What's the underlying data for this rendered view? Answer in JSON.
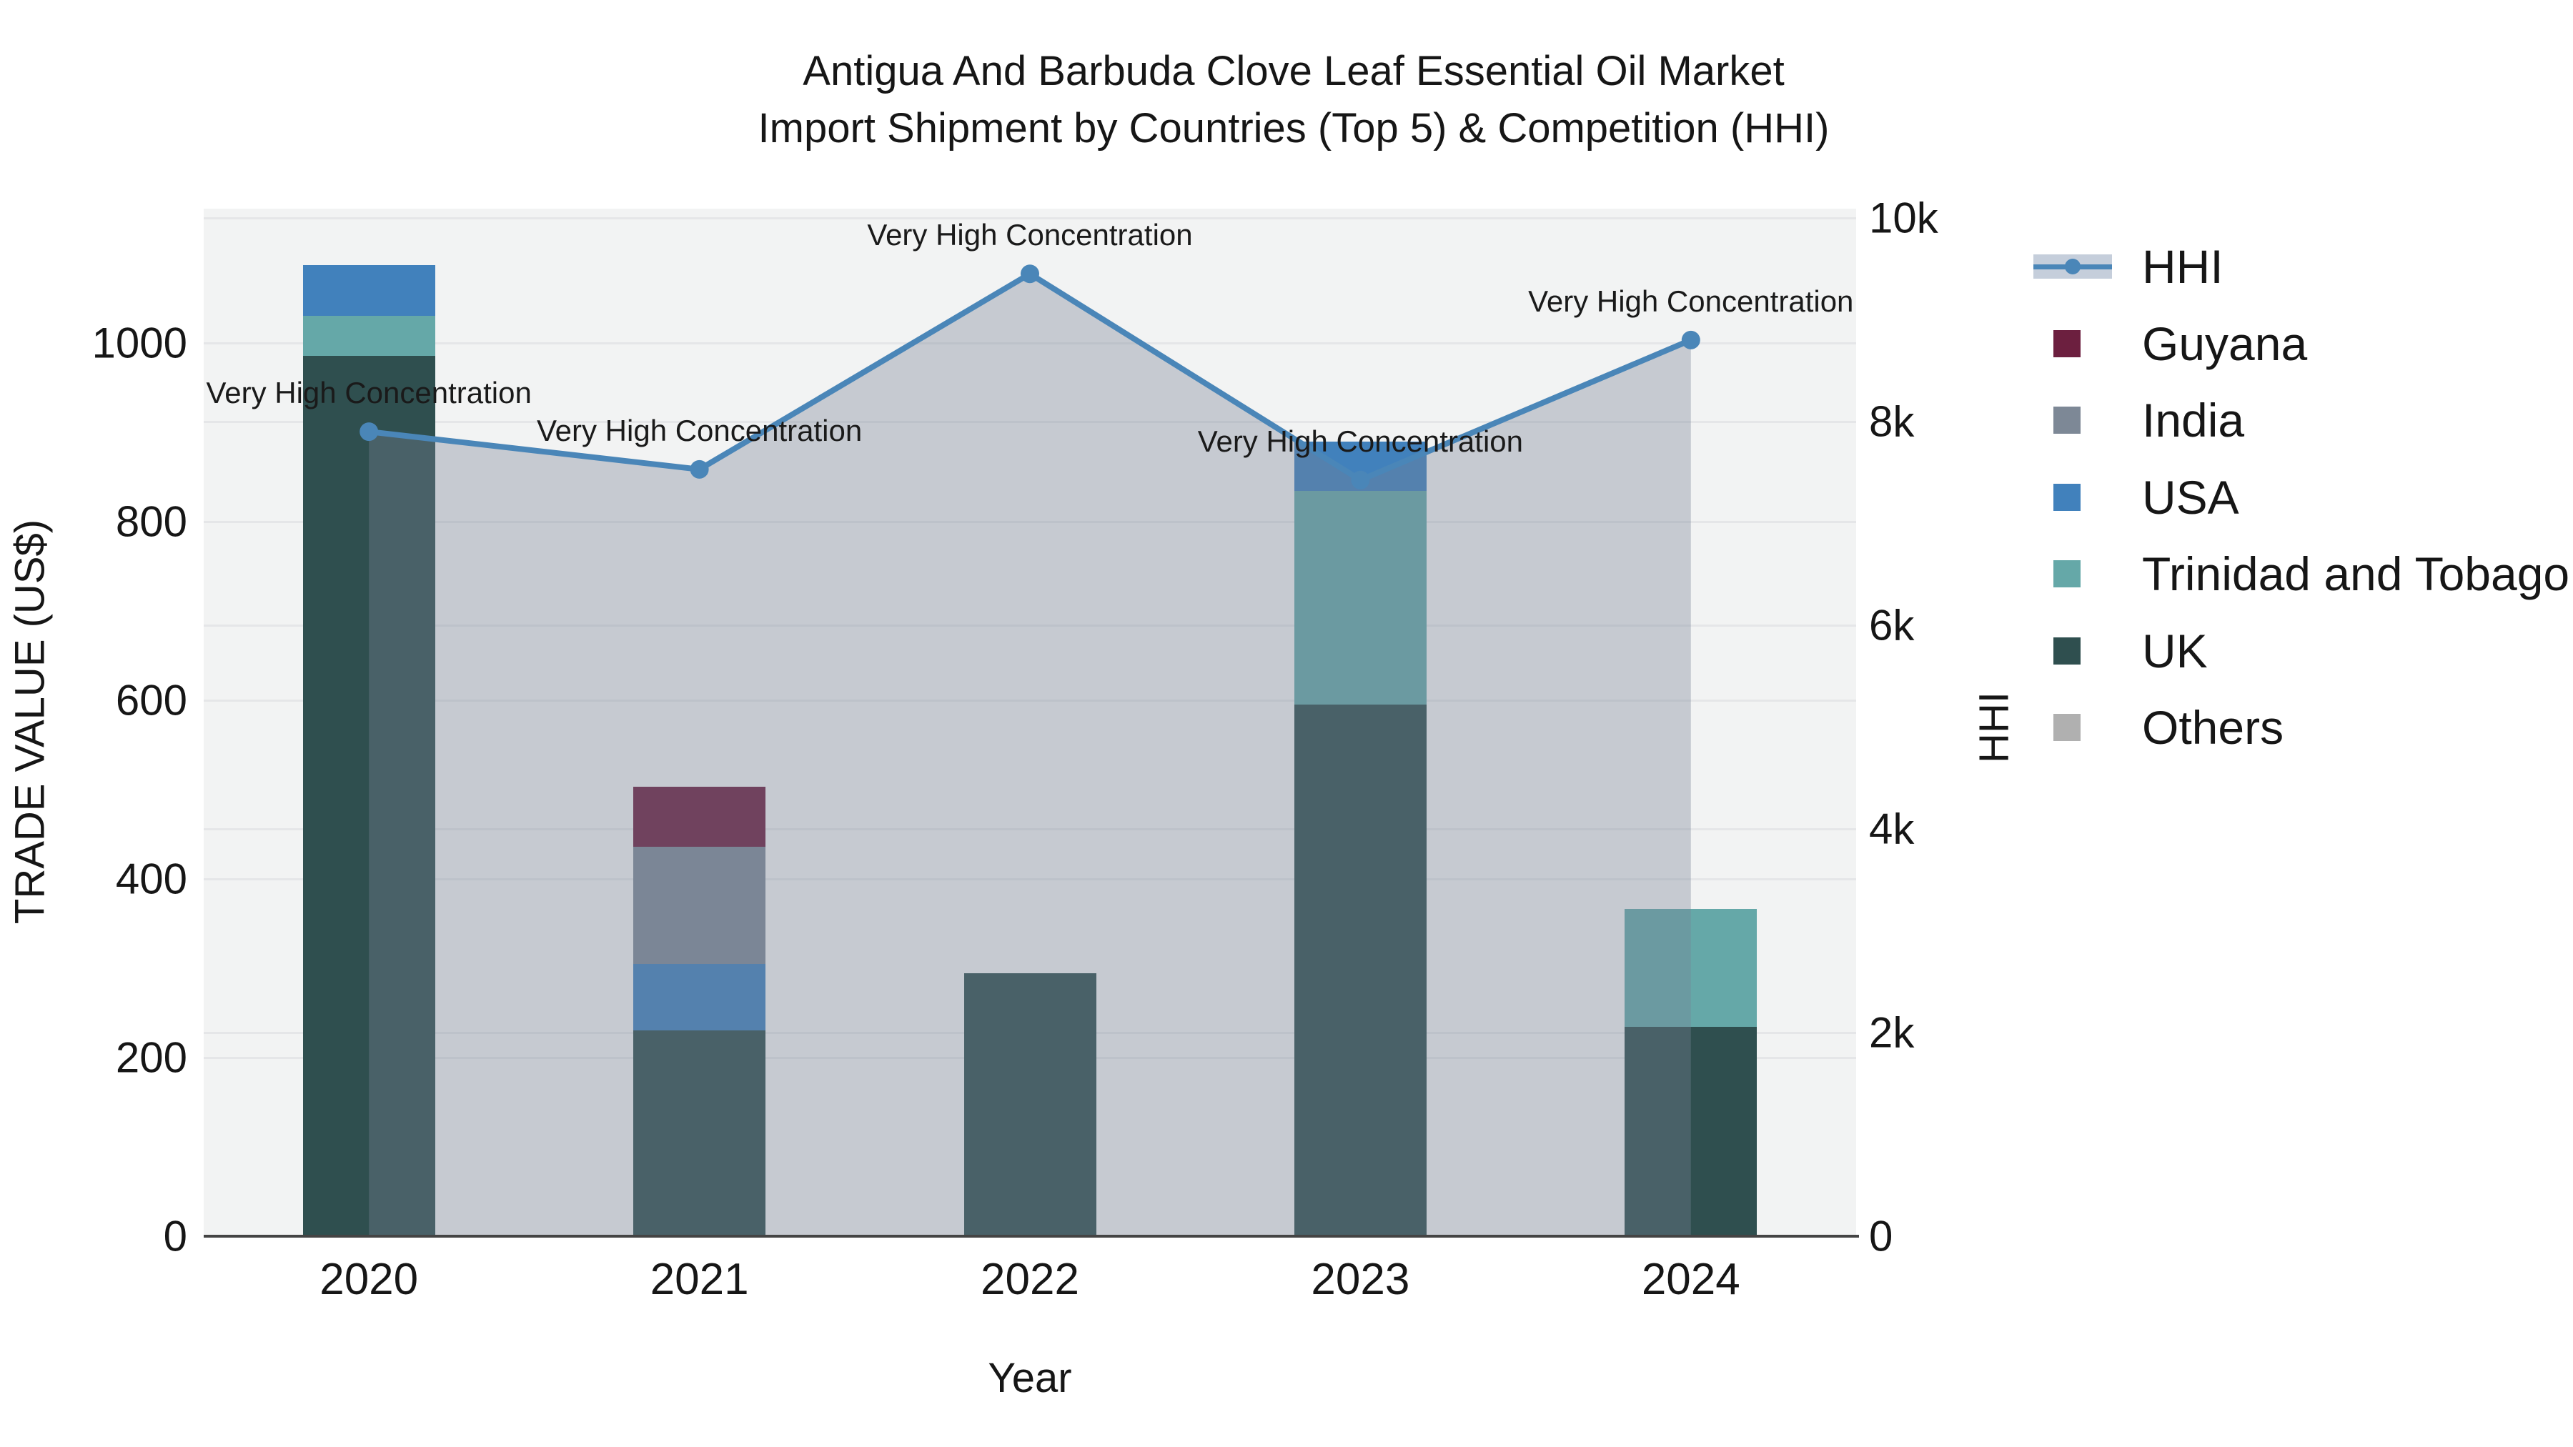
{
  "title": {
    "line1": "Antigua And Barbuda Clove Leaf Essential Oil Market",
    "line2": "Import Shipment by Countries (Top 5) & Competition (HHI)"
  },
  "axes": {
    "x_title": "Year",
    "y_left_title": "TRADE VALUE (US$)",
    "y_right_title": "HHI",
    "x_ticks": [
      "2020",
      "2021",
      "2022",
      "2023",
      "2024"
    ],
    "y_left_ticks": [
      "0",
      "200",
      "400",
      "600",
      "800",
      "1000"
    ],
    "y_right_ticks": [
      "0",
      "2k",
      "4k",
      "6k",
      "8k",
      "10k"
    ]
  },
  "legend": [
    {
      "label": "HHI",
      "type": "line",
      "color": "#4a86b8"
    },
    {
      "label": "Guyana",
      "type": "square",
      "color": "#6c1f3f"
    },
    {
      "label": "India",
      "type": "square",
      "color": "#7d8896"
    },
    {
      "label": "USA",
      "type": "square",
      "color": "#4181bc"
    },
    {
      "label": "Trinidad and Tobago",
      "type": "square",
      "color": "#65a8a8"
    },
    {
      "label": "UK",
      "type": "square",
      "color": "#2f4f4f"
    },
    {
      "label": "Others",
      "type": "square",
      "color": "#b0b0b0"
    }
  ],
  "chart_data": {
    "type": "bar+line",
    "title": "Antigua And Barbuda Clove Leaf Essential Oil Market Import Shipment by Countries (Top 5) & Competition (HHI)",
    "xlabel": "Year",
    "categories": [
      "2020",
      "2021",
      "2022",
      "2023",
      "2024"
    ],
    "stack_order_bottom_to_top": [
      "UK",
      "Trinidad and Tobago",
      "USA",
      "India",
      "Guyana",
      "Others"
    ],
    "bar_series": [
      {
        "name": "UK",
        "color": "#2f4f4f",
        "values": [
          985,
          230,
          294,
          595,
          234
        ]
      },
      {
        "name": "Trinidad and Tobago",
        "color": "#65a8a8",
        "values": [
          45,
          0,
          0,
          239,
          132
        ]
      },
      {
        "name": "USA",
        "color": "#4181bc",
        "values": [
          57,
          75,
          0,
          55,
          0
        ]
      },
      {
        "name": "India",
        "color": "#7d8896",
        "values": [
          0,
          131,
          0,
          0,
          0
        ]
      },
      {
        "name": "Guyana",
        "color": "#6c1f3f",
        "values": [
          0,
          67,
          0,
          0,
          0
        ]
      },
      {
        "name": "Others",
        "color": "#b0b0b0",
        "values": [
          0,
          0,
          0,
          0,
          0
        ]
      }
    ],
    "bar_totals": [
      1087,
      503,
      294,
      889,
      366
    ],
    "line_series": {
      "name": "HHI",
      "color": "#4a86b8",
      "area_fill": "rgba(119,131,149,0.36)",
      "values": [
        7900,
        7530,
        9450,
        7425,
        8800
      ]
    },
    "annotations": [
      {
        "x": "2020",
        "y": 7900,
        "label": "Very High Concentration"
      },
      {
        "x": "2021",
        "y": 7530,
        "label": "Very High Concentration"
      },
      {
        "x": "2022",
        "y": 9450,
        "label": "Very High Concentration"
      },
      {
        "x": "2023",
        "y": 7425,
        "label": "Very High Concentration"
      },
      {
        "x": "2024",
        "y": 8800,
        "label": "Very High Concentration"
      }
    ],
    "y_left": {
      "label": "TRADE VALUE (US$)",
      "range": [
        0,
        1150
      ],
      "tick_values": [
        0,
        200,
        400,
        600,
        800,
        1000
      ]
    },
    "y_right": {
      "label": "HHI",
      "range": [
        0,
        10090
      ],
      "tick_values": [
        0,
        2000,
        4000,
        6000,
        8000,
        10000
      ]
    },
    "grid": true,
    "legend_position": "right"
  }
}
